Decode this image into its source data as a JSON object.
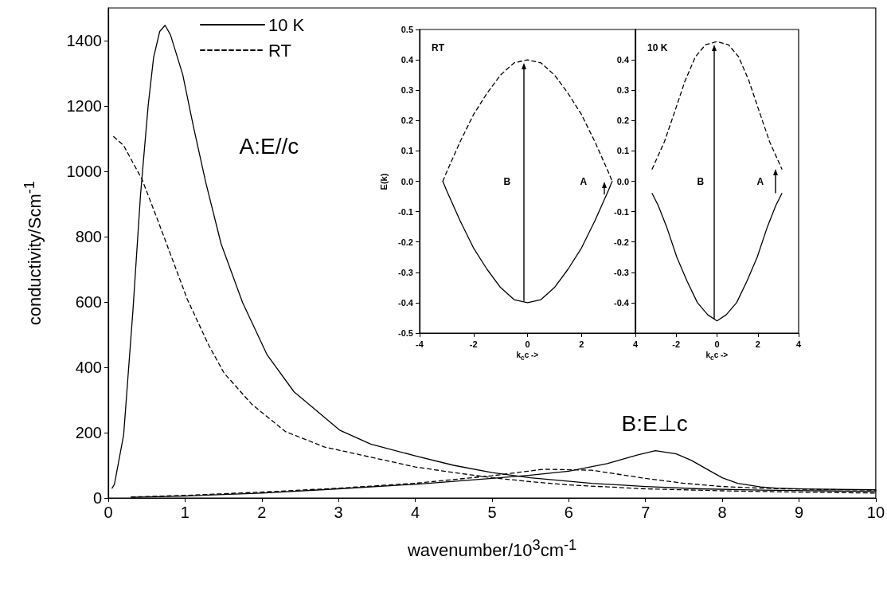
{
  "chart_data": [
    {
      "type": "line",
      "xlabel": "wavenumber/10$^{3}$cm$^{-1}$",
      "ylabel": "conductivity/Scm$^{-1}$",
      "xlim": [
        0,
        10
      ],
      "ylim": [
        0,
        1500
      ],
      "xticks": [
        0,
        1,
        2,
        3,
        4,
        5,
        6,
        7,
        8,
        9,
        10
      ],
      "yticks": [
        0,
        200,
        400,
        600,
        800,
        1000,
        1200,
        1400
      ],
      "grid": false,
      "legend": "top left",
      "marker": "none",
      "annotations": [
        "A:E//c",
        "B:E⊥c"
      ],
      "series": [
        {
          "name": "10 K",
          "color": "#000000",
          "line_style": "solid",
          "x": [
            0.05,
            0.08,
            0.2,
            0.32,
            0.42,
            0.52,
            0.59,
            0.67,
            0.74,
            0.81,
            0.97,
            1.11,
            1.27,
            1.47,
            1.75,
            2.07,
            2.42,
            3.02,
            3.42,
            4.0,
            4.5,
            5.0,
            5.5,
            6.3,
            7.0,
            7.7,
            8.5,
            9.3,
            10.0
          ],
          "values": [
            30,
            42,
            193,
            570,
            928,
            1202,
            1348,
            1428,
            1447,
            1418,
            1296,
            1136,
            966,
            778,
            598,
            438,
            325,
            207,
            165,
            129,
            100,
            78,
            62,
            45,
            35,
            28,
            24,
            22,
            20
          ]
        },
        {
          "name": "RT",
          "color": "#000000",
          "line_style": "dashed",
          "x": [
            0.07,
            0.2,
            0.44,
            0.64,
            0.79,
            1.03,
            1.31,
            1.51,
            1.87,
            2.31,
            2.82,
            3.42,
            4.0,
            4.5,
            5.0,
            5.5,
            6.0,
            7.0,
            8.0,
            9.0,
            10.0
          ],
          "values": [
            1106,
            1079,
            975,
            853,
            759,
            608,
            467,
            382,
            287,
            203,
            156,
            125,
            95,
            78,
            62,
            50,
            40,
            28,
            22,
            18,
            15
          ]
        },
        {
          "color": "#000000",
          "line_style": "solid",
          "x": [
            0.3,
            1.0,
            2.0,
            3.0,
            4.0,
            5.0,
            5.5,
            6.0,
            6.5,
            6.9,
            7.13,
            7.4,
            7.6,
            7.8,
            8.0,
            8.2,
            8.5,
            8.7,
            9.2,
            10.0
          ],
          "values": [
            2,
            6,
            15,
            28,
            42,
            60,
            70,
            82,
            105,
            132,
            145,
            135,
            115,
            88,
            62,
            45,
            34,
            30,
            27,
            25
          ]
        },
        {
          "color": "#000000",
          "line_style": "dashed",
          "x": [
            0.3,
            1.0,
            2.0,
            3.0,
            4.0,
            5.0,
            5.67,
            6.3,
            7.0,
            7.5,
            8.0,
            8.5,
            9.0,
            10.0
          ],
          "values": [
            3,
            8,
            18,
            30,
            45,
            68,
            88,
            85,
            60,
            45,
            35,
            30,
            27,
            24
          ]
        }
      ]
    },
    {
      "type": "line",
      "title": "RT",
      "xlabel": "k$_{c}$c ->",
      "ylabel": "E(k)",
      "xlim": [
        -4,
        4
      ],
      "ylim": [
        -0.5,
        0.5
      ],
      "xticks": [
        -4,
        -2,
        0,
        2,
        4
      ],
      "yticks": [
        {
          "value": -0.5,
          "label": "-0.5"
        },
        {
          "value": -0.4,
          "label": "-0.4"
        },
        {
          "value": -0.3,
          "label": "-0.3"
        },
        {
          "value": -0.2,
          "label": "-0.2"
        },
        {
          "value": -0.1,
          "label": "-0.1"
        },
        {
          "value": 0,
          "label": "0.0"
        },
        {
          "value": 0.1,
          "label": "0.1"
        },
        {
          "value": 0.2,
          "label": "0.2"
        },
        {
          "value": 0.3,
          "label": "0.3"
        },
        {
          "value": 0.4,
          "label": "0.4"
        },
        {
          "value": 0.5,
          "label": "0.5"
        }
      ],
      "grid": false,
      "marker": "none",
      "annotations": [
        "B",
        "A"
      ],
      "series": [
        {
          "color": "#000000",
          "line_style": "dashed",
          "x": [
            -3.14,
            -3.0,
            -2.5,
            -2.0,
            -1.5,
            -1.0,
            -0.5,
            0,
            0.5,
            1.0,
            1.5,
            2.0,
            2.5,
            3.0,
            3.14
          ],
          "values": [
            0,
            0.03,
            0.13,
            0.22,
            0.29,
            0.35,
            0.39,
            0.4,
            0.39,
            0.35,
            0.29,
            0.22,
            0.13,
            0.03,
            0
          ]
        },
        {
          "color": "#000000",
          "line_style": "solid",
          "x": [
            -3.14,
            -3.0,
            -2.5,
            -2.0,
            -1.5,
            -1.0,
            -0.5,
            0,
            0.5,
            1.0,
            1.5,
            2.0,
            2.5,
            3.0,
            3.14
          ],
          "values": [
            0,
            -0.03,
            -0.13,
            -0.22,
            -0.29,
            -0.35,
            -0.39,
            -0.4,
            -0.39,
            -0.35,
            -0.29,
            -0.22,
            -0.13,
            -0.03,
            0
          ]
        }
      ]
    },
    {
      "type": "line",
      "title": "10 K",
      "xlabel": "k$_{c}$c ->",
      "xlim": [
        -4,
        4
      ],
      "ylim": [
        -0.5,
        0.5
      ],
      "xticks": [
        -2,
        0,
        2,
        4
      ],
      "yticks": [
        {
          "value": -0.4,
          "label": "-0.4"
        },
        {
          "value": -0.3,
          "label": "-0.3"
        },
        {
          "value": -0.2,
          "label": "-0.2"
        },
        {
          "value": -0.1,
          "label": "-0.1"
        },
        {
          "value": 0,
          "label": "0.0"
        },
        {
          "value": 0.1,
          "label": "0.1"
        },
        {
          "value": 0.2,
          "label": "0.2"
        },
        {
          "value": 0.3,
          "label": "0.3"
        },
        {
          "value": 0.4,
          "label": "0.4"
        }
      ],
      "grid": false,
      "marker": "none",
      "annotations": [
        "B",
        "A"
      ],
      "series": [
        {
          "color": "#000000",
          "line_style": "dashed",
          "x": [
            -3.18,
            -2.98,
            -2.58,
            -2.07,
            -1.57,
            -1.06,
            -0.56,
            0,
            0.56,
            1.06,
            1.57,
            2.07,
            2.58,
            2.98,
            3.18
          ],
          "values": [
            0.04,
            0.07,
            0.13,
            0.23,
            0.33,
            0.41,
            0.45,
            0.46,
            0.45,
            0.41,
            0.33,
            0.23,
            0.13,
            0.07,
            0.04
          ]
        },
        {
          "color": "#000000",
          "line_style": "solid",
          "x": [
            -3.18,
            -2.88,
            -2.47,
            -1.97,
            -1.46,
            -0.96,
            -0.45,
            0,
            0.45,
            0.96,
            1.46,
            1.97,
            2.47,
            2.88,
            3.18
          ],
          "values": [
            -0.04,
            -0.08,
            -0.15,
            -0.25,
            -0.33,
            -0.4,
            -0.44,
            -0.46,
            -0.44,
            -0.4,
            -0.33,
            -0.25,
            -0.15,
            -0.08,
            -0.04
          ]
        }
      ]
    }
  ]
}
